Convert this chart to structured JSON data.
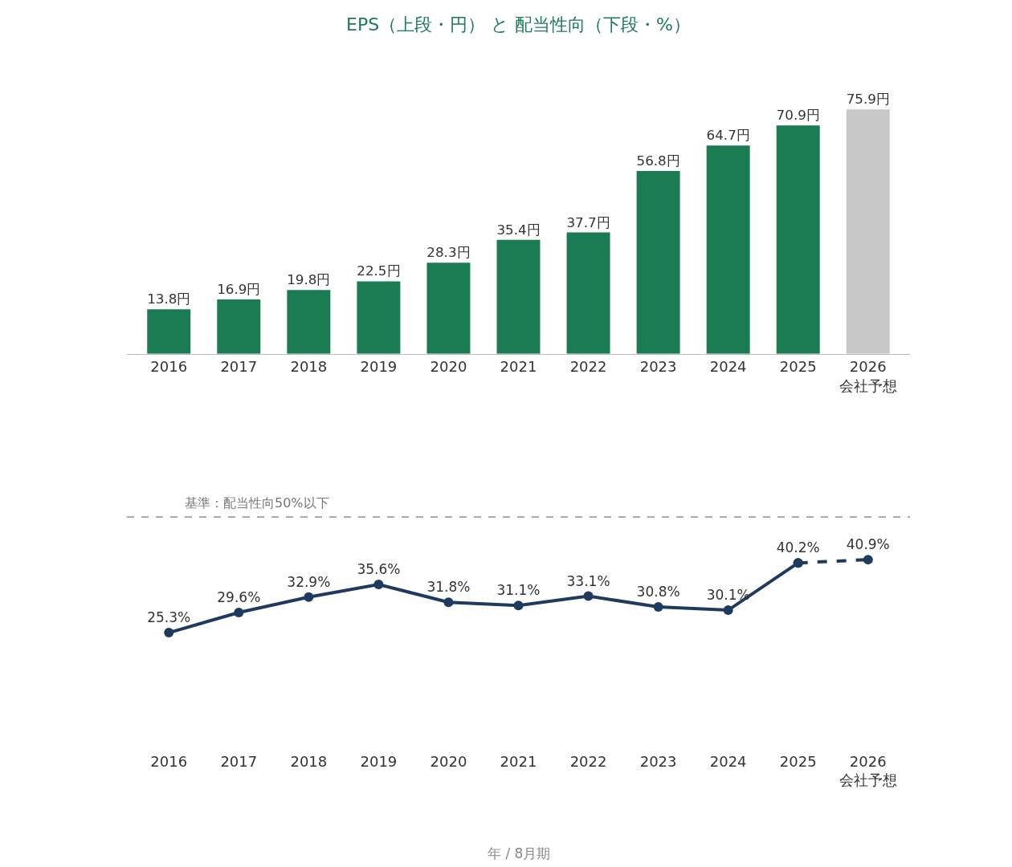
{
  "chart_data": [
    {
      "type": "bar",
      "title": "EPS（上段・円） と 配当性向（下段・%）",
      "categories": [
        "2016",
        "2017",
        "2018",
        "2019",
        "2020",
        "2021",
        "2022",
        "2023",
        "2024",
        "2025",
        "2026\n会社予想"
      ],
      "values": [
        13.8,
        16.9,
        19.8,
        22.5,
        28.3,
        35.4,
        37.7,
        56.8,
        64.7,
        70.9,
        75.9
      ],
      "colors": [
        "#1b7c53",
        "#1b7c53",
        "#1b7c53",
        "#1b7c53",
        "#1b7c53",
        "#1b7c53",
        "#1b7c53",
        "#1b7c53",
        "#1b7c53",
        "#1b7c53",
        "#c8c8c8"
      ],
      "value_labels": [
        "13.8円",
        "16.9円",
        "19.8円",
        "22.5円",
        "28.3円",
        "35.4円",
        "37.7円",
        "56.8円",
        "64.7円",
        "70.9円",
        "75.9円"
      ],
      "tick_labels": "x"
    },
    {
      "type": "line",
      "categories": [
        "2016",
        "2017",
        "2018",
        "2019",
        "2020",
        "2021",
        "2022",
        "2023",
        "2024",
        "2025",
        "2026\n会社予想"
      ],
      "series": [
        {
          "color": "#1f3a5f",
          "line_style": "solid",
          "values": [
            25.3,
            29.6,
            32.9,
            35.6,
            31.8,
            31.1,
            33.1,
            30.8,
            30.1,
            40.2,
            null
          ],
          "value_labels": [
            "25.3%",
            "29.6%",
            "32.9%",
            "35.6%",
            "31.8%",
            "31.1%",
            "33.1%",
            "30.8%",
            "30.1%",
            "40.2%",
            null
          ]
        },
        {
          "color": "#1f3a5f",
          "line_style": "dashed",
          "values": [
            null,
            null,
            null,
            null,
            null,
            null,
            null,
            null,
            null,
            40.2,
            40.9
          ],
          "value_labels": [
            null,
            null,
            null,
            null,
            null,
            null,
            null,
            null,
            null,
            null,
            "40.9%"
          ]
        }
      ],
      "marker": "circle",
      "tick_labels": "x",
      "ref_lines": [
        {
          "axis": "y",
          "value": 50,
          "label": "基準：配当性向50%以下",
          "color": "#aaaaaa",
          "line_style": "dashed"
        }
      ],
      "annotations": [
        "年 / 8月期"
      ]
    }
  ]
}
